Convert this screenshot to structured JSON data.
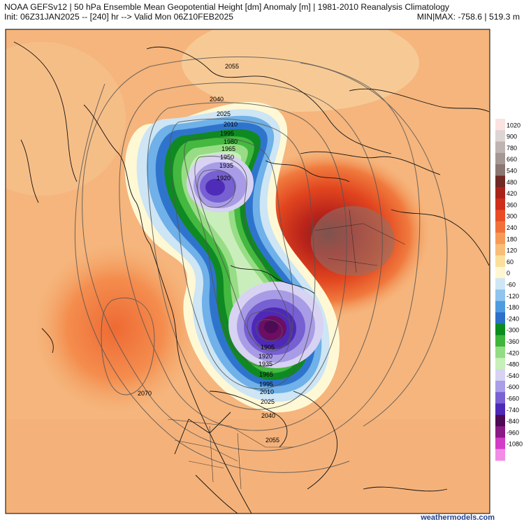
{
  "header": {
    "line1": "NOAA GEFSv12 | 50 hPa Ensemble Mean Geopotential Height [dm] Anomaly [m] | 1981-2010 Reanalysis Climatology",
    "line2_left": "Init: 06Z31JAN2025 -- [240] hr --> Valid Mon 06Z10FEB2025",
    "line2_right": "MIN|MAX: -758.6 | 519.3 m"
  },
  "map": {
    "contour_labels": [
      "2055",
      "2040",
      "2025",
      "2010",
      "1995",
      "1980",
      "1965",
      "1950",
      "1935",
      "1920",
      "2070",
      "1905",
      "1920",
      "1935",
      "1965",
      "1995",
      "2010",
      "2025",
      "2040",
      "2055"
    ]
  },
  "legend": {
    "ticks": [
      "1020",
      "900",
      "780",
      "660",
      "540",
      "480",
      "420",
      "360",
      "300",
      "240",
      "180",
      "120",
      "60",
      "0",
      "-60",
      "-120",
      "-180",
      "-240",
      "-300",
      "-360",
      "-420",
      "-480",
      "-540",
      "-600",
      "-660",
      "-740",
      "-840",
      "-960",
      "-1080"
    ],
    "colors": [
      "#fbe3e1",
      "#dcd5d4",
      "#bfb4b2",
      "#a59794",
      "#8b7672",
      "#6f2a26",
      "#a8241b",
      "#cf2e1b",
      "#ea4c26",
      "#f1713a",
      "#f59b58",
      "#f8bd78",
      "#fbe09c",
      "#fff7d2",
      "#cfe6f5",
      "#8ec4ee",
      "#4f9be0",
      "#2d6fc9",
      "#0b8d1e",
      "#3fb53b",
      "#93dc83",
      "#c6efb9",
      "#d8d3f3",
      "#aa9ee8",
      "#7a62d4",
      "#4e28b8",
      "#4d0b55",
      "#8a1a84",
      "#d33cc7",
      "#f28ce6"
    ]
  },
  "footer": {
    "credit": "weathermodels.com"
  }
}
